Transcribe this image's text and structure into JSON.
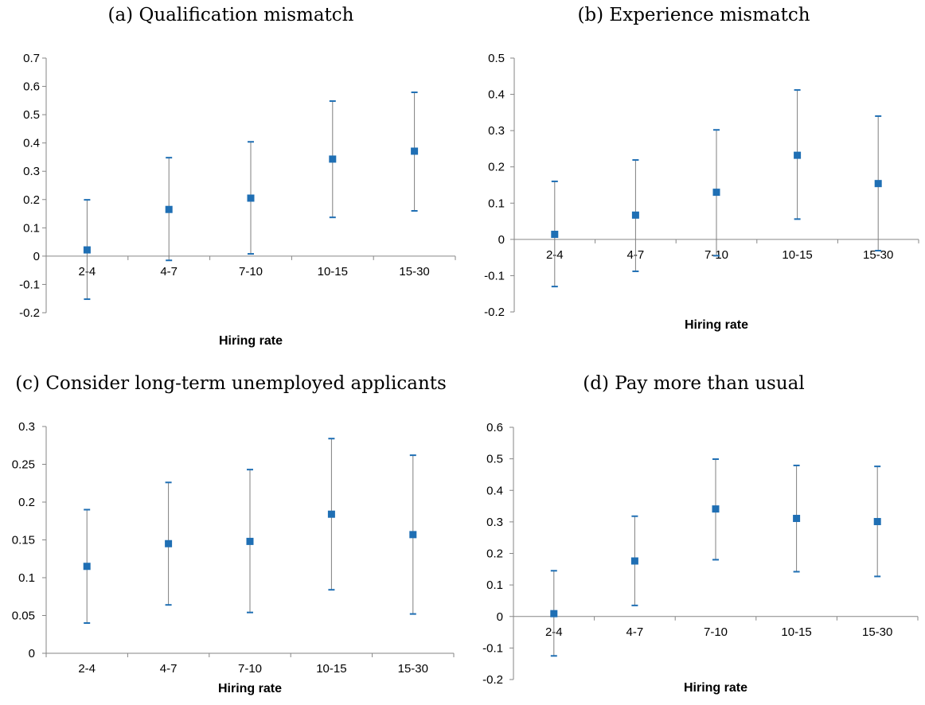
{
  "chart_data": [
    {
      "type": "scatter",
      "title": "(a) Qualification mismatch",
      "xlabel": "Hiring  rate",
      "categories": [
        "2-4",
        "4-7",
        "7-10",
        "10-15",
        "15-30"
      ],
      "values": [
        0.022,
        0.165,
        0.205,
        0.343,
        0.371
      ],
      "lower": [
        -0.152,
        -0.015,
        0.008,
        0.137,
        0.16
      ],
      "upper": [
        0.199,
        0.348,
        0.404,
        0.548,
        0.579
      ],
      "ylim": [
        -0.2,
        0.7
      ],
      "yticks": [
        "-0.2",
        "-0.1",
        "0",
        "0.1",
        "0.2",
        "0.3",
        "0.4",
        "0.5",
        "0.6",
        "0.7"
      ],
      "color": "#1f6fb4"
    },
    {
      "type": "scatter",
      "title": "(b) Experience mismatch",
      "xlabel": "Hiring  rate",
      "categories": [
        "2-4",
        "4-7",
        "7-10",
        "10-15",
        "15-30"
      ],
      "values": [
        0.014,
        0.067,
        0.13,
        0.232,
        0.154
      ],
      "lower": [
        -0.13,
        -0.088,
        -0.045,
        0.056,
        -0.031
      ],
      "upper": [
        0.16,
        0.219,
        0.302,
        0.412,
        0.34
      ],
      "ylim": [
        -0.2,
        0.5
      ],
      "yticks": [
        "-0.2",
        "-0.1",
        "0",
        "0.1",
        "0.2",
        "0.3",
        "0.4",
        "0.5"
      ],
      "color": "#1f6fb4"
    },
    {
      "type": "scatter",
      "title": "(c) Consider long-term unemployed applicants",
      "xlabel": "Hiring  rate",
      "categories": [
        "2-4",
        "4-7",
        "7-10",
        "10-15",
        "15-30"
      ],
      "values": [
        0.115,
        0.145,
        0.148,
        0.184,
        0.157
      ],
      "lower": [
        0.04,
        0.064,
        0.054,
        0.084,
        0.052
      ],
      "upper": [
        0.19,
        0.226,
        0.243,
        0.284,
        0.262
      ],
      "ylim": [
        0,
        0.3
      ],
      "yticks": [
        "0",
        "0.05",
        "0.1",
        "0.15",
        "0.2",
        "0.25",
        "0.3"
      ],
      "color": "#1f6fb4"
    },
    {
      "type": "scatter",
      "title": "(d) Pay more than usual",
      "xlabel": "Hiring  rate",
      "categories": [
        "2-4",
        "4-7",
        "7-10",
        "10-15",
        "15-30"
      ],
      "values": [
        0.009,
        0.176,
        0.341,
        0.311,
        0.301
      ],
      "lower": [
        -0.125,
        0.035,
        0.18,
        0.142,
        0.127
      ],
      "upper": [
        0.145,
        0.318,
        0.499,
        0.479,
        0.476
      ],
      "ylim": [
        -0.2,
        0.6
      ],
      "yticks": [
        "-0.2",
        "-0.1",
        "0",
        "0.1",
        "0.2",
        "0.3",
        "0.4",
        "0.5",
        "0.6"
      ],
      "color": "#1f6fb4"
    }
  ]
}
